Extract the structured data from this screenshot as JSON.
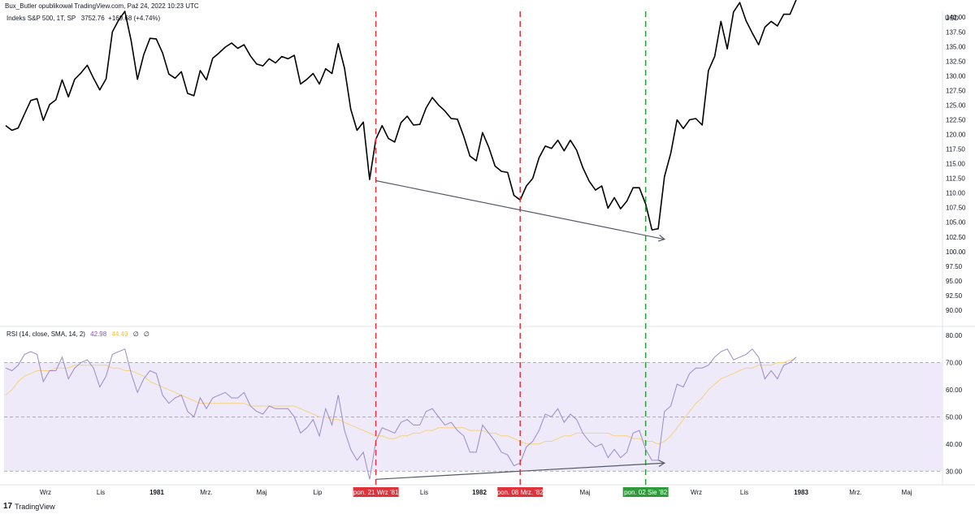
{
  "header": {
    "published_by": "Bux_Butler opublikował TradingView.com, Paź 24, 2022 10:23 UTC"
  },
  "main_legend": {
    "symbol": "Indeks S&P 500, 1T, SP",
    "price": "3752.76",
    "change": "+169.68 (+4.74%)"
  },
  "rsi_legend": {
    "label": "RSI (14, close, SMA, 14, 2)",
    "rsi_value": "42.98",
    "sma_value": "44.49",
    "extra1": "∅",
    "extra2": "∅"
  },
  "currency": "USD",
  "footer": {
    "logo": "17",
    "brand": "TradingView"
  },
  "colors": {
    "price_line": "#000000",
    "rsi_line": "#9c89c9",
    "rsi_sma": "#f7d27a",
    "rsi_band": "#eeeafa",
    "red_marker": "#e0323b",
    "green_marker": "#2e9b3a",
    "trendline": "#555a66"
  },
  "x_axis_labels": [
    {
      "text": "Wrz",
      "bold": false
    },
    {
      "text": "Lis",
      "bold": false
    },
    {
      "text": "1981",
      "bold": true
    },
    {
      "text": "Mrz.",
      "bold": false
    },
    {
      "text": "Maj",
      "bold": false
    },
    {
      "text": "Lip",
      "bold": false
    },
    {
      "text": "Lis",
      "bold": false
    },
    {
      "text": "1982",
      "bold": true
    },
    {
      "text": "Maj",
      "bold": false
    },
    {
      "text": "Lip",
      "bold": false
    },
    {
      "text": "Wrz",
      "bold": false
    },
    {
      "text": "Lis",
      "bold": false
    },
    {
      "text": "1983",
      "bold": true
    },
    {
      "text": "Mrz.",
      "bold": false
    },
    {
      "text": "Maj",
      "bold": false
    }
  ],
  "date_markers": [
    {
      "label": "pon. 21 Wrz '81",
      "color": "red"
    },
    {
      "label": "pon. 08 Mrz. '82",
      "color": "red"
    },
    {
      "label": "pon. 02 Sie '82",
      "color": "green"
    }
  ],
  "chart_data": [
    {
      "type": "line",
      "title": "Indeks S&P 500, 1T, SP",
      "ylim": [
        87.5,
        141
      ],
      "y_ticks": [
        "140.00",
        "137.50",
        "135.00",
        "132.50",
        "130.00",
        "127.50",
        "125.00",
        "122.50",
        "120.00",
        "117.50",
        "115.00",
        "112.50",
        "110.00",
        "107.50",
        "105.00",
        "102.50",
        "100.00",
        "97.50",
        "95.00",
        "92.50",
        "90.00"
      ],
      "series": [
        {
          "values": [
            121.5,
            120.7,
            121.1,
            123.5,
            125.8,
            126.1,
            122.4,
            125.1,
            125.9,
            129.3,
            126.4,
            129.4,
            130.5,
            131.8,
            129.6,
            127.6,
            129.5,
            137.5,
            139.5,
            141.0,
            136.0,
            129.4,
            133.6,
            136.4,
            136.3,
            133.9,
            130.3,
            129.6,
            130.7,
            127.0,
            126.6,
            130.9,
            129.3,
            133.0,
            133.9,
            134.9,
            135.6,
            134.7,
            135.3,
            133.4,
            132.0,
            131.7,
            132.9,
            132.2,
            133.3,
            132.9,
            133.5,
            128.6,
            129.4,
            130.4,
            128.6,
            131.2,
            130.4,
            135.5,
            131.3,
            124.3,
            120.7,
            122.1,
            112.3,
            119.2,
            121.5,
            119.3,
            118.7,
            122.0,
            123.1,
            121.6,
            121.7,
            124.5,
            126.3,
            125.0,
            124.0,
            122.7,
            122.6,
            119.7,
            116.3,
            115.5,
            120.3,
            117.8,
            114.6,
            113.7,
            113.5,
            109.6,
            108.8,
            111.2,
            112.5,
            116.0,
            118.0,
            117.6,
            119.0,
            117.2,
            119.0,
            117.3,
            114.3,
            112.0,
            110.5,
            111.2,
            107.4,
            109.2,
            107.3,
            108.6,
            110.9,
            110.9,
            108.1,
            103.7,
            103.9,
            112.8,
            116.8,
            122.5,
            121.0,
            122.5,
            122.7,
            121.6,
            130.9,
            133.3,
            139.3,
            134.6,
            140.9,
            142.5,
            139.4,
            137.3,
            135.3,
            138.3,
            139.3,
            138.5,
            140.5,
            140.5,
            143.0
          ]
        }
      ],
      "annotations": [
        {
          "type": "trend_arrow",
          "from": [
            59,
            112.1
          ],
          "to": [
            105,
            102.1
          ]
        },
        {
          "type": "vline",
          "at_index": 59,
          "color": "red"
        },
        {
          "type": "vline",
          "at_index": 82,
          "color": "red"
        },
        {
          "type": "vline",
          "at_index": 102,
          "color": "green"
        }
      ]
    },
    {
      "type": "line",
      "title": "RSI (14, close, SMA, 14, 2)",
      "ylim": [
        25,
        83
      ],
      "y_ticks": [
        "80.00",
        "70.00",
        "60.00",
        "50.00",
        "40.00",
        "30.00"
      ],
      "bands": [
        30,
        50,
        70
      ],
      "series": [
        {
          "name": "RSI",
          "values": [
            68,
            67,
            69,
            73,
            74,
            73,
            63,
            67,
            67,
            72,
            64,
            68,
            70,
            71,
            68,
            61,
            65,
            73,
            74,
            75,
            66,
            59,
            64,
            67,
            66,
            58,
            55,
            57,
            58,
            52,
            50,
            57,
            53,
            57,
            58,
            59,
            57,
            57,
            59,
            54,
            52,
            51,
            54,
            53,
            53,
            53,
            50,
            44,
            46,
            49,
            43,
            53,
            47,
            58,
            45,
            38,
            34,
            37,
            27,
            41,
            46,
            45,
            44,
            48,
            49,
            47,
            47,
            52,
            53,
            50,
            47,
            48,
            45,
            43,
            37,
            37,
            47,
            44,
            41,
            37,
            36,
            32,
            33,
            39,
            41,
            45,
            51,
            50,
            53,
            48,
            51,
            49,
            44,
            41,
            39,
            40,
            35,
            38,
            35,
            37,
            44,
            45,
            38,
            34,
            34,
            52,
            54,
            62,
            61,
            66,
            68,
            68,
            69,
            72,
            74,
            75,
            71,
            72,
            73,
            75,
            72,
            64,
            67,
            64,
            69,
            70,
            72
          ],
          "note": "RSI values approximated from chart"
        },
        {
          "name": "SMA",
          "values": [
            58,
            60,
            63,
            65,
            66,
            67,
            67,
            67,
            68,
            68,
            68,
            69,
            69,
            69,
            69,
            69,
            69,
            68,
            68,
            67,
            67,
            66,
            65,
            63,
            62,
            61,
            60,
            59,
            58,
            57,
            56,
            55,
            55,
            55,
            55,
            55,
            55,
            55,
            55,
            54,
            54,
            54,
            54,
            54,
            54,
            54,
            54,
            53,
            52,
            51,
            50,
            50,
            49,
            49,
            48,
            47,
            46,
            45,
            44,
            43,
            43,
            42,
            42,
            43,
            43,
            44,
            44,
            45,
            45,
            46,
            46,
            46,
            46,
            46,
            45,
            45,
            45,
            44,
            44,
            43,
            43,
            42,
            41,
            40,
            40,
            40,
            41,
            41,
            42,
            43,
            43,
            44,
            44,
            44,
            44,
            44,
            44,
            43,
            43,
            43,
            42,
            42,
            41,
            41,
            40,
            41,
            43,
            46,
            49,
            52,
            55,
            57,
            60,
            62,
            64,
            65,
            66,
            67,
            68,
            68,
            69,
            69,
            69,
            70,
            70,
            71,
            71
          ]
        }
      ],
      "annotations": [
        {
          "type": "trend_arrow",
          "from": [
            59,
            27
          ],
          "to": [
            105,
            33
          ]
        }
      ]
    }
  ]
}
